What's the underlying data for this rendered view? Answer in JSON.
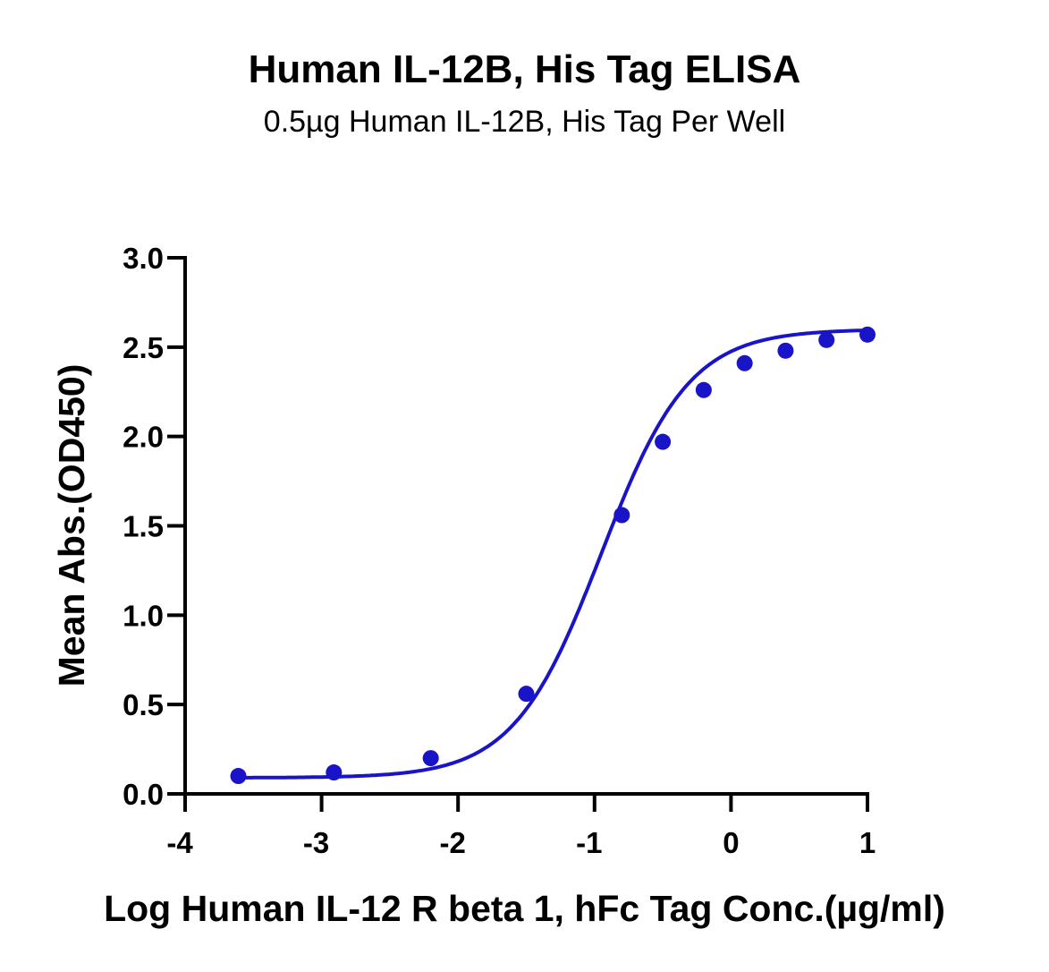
{
  "chart_data": {
    "type": "scatter",
    "title": "Human IL-12B, His Tag ELISA",
    "subtitle": "0.5µg Human IL-12B, His Tag Per Well",
    "xlabel": "Log Human IL-12 R beta 1, hFc Tag Conc.(µg/ml)",
    "ylabel": "Mean Abs.(OD450)",
    "xlim": [
      -4,
      1
    ],
    "ylim": [
      0,
      3.0
    ],
    "x_ticks": [
      "-4",
      "-3",
      "-2",
      "-1",
      "0",
      "1"
    ],
    "y_ticks": [
      "0.0",
      "0.5",
      "1.0",
      "1.5",
      "2.0",
      "2.5",
      "3.0"
    ],
    "grid": false,
    "legend": "none",
    "series": [
      {
        "color": "#1a14c8",
        "points": [
          {
            "x": -3.61,
            "y": 0.1
          },
          {
            "x": -2.91,
            "y": 0.12
          },
          {
            "x": -2.2,
            "y": 0.2
          },
          {
            "x": -1.5,
            "y": 0.56
          },
          {
            "x": -0.8,
            "y": 1.56
          },
          {
            "x": -0.5,
            "y": 1.97
          },
          {
            "x": -0.2,
            "y": 2.26
          },
          {
            "x": 0.1,
            "y": 2.41
          },
          {
            "x": 0.4,
            "y": 2.48
          },
          {
            "x": 0.7,
            "y": 2.54
          },
          {
            "x": 1.0,
            "y": 2.57
          }
        ],
        "fit": {
          "model": "4PL",
          "bottom": 0.09,
          "top": 2.6,
          "logEC50": -0.95,
          "hill": 1.35
        }
      }
    ]
  }
}
